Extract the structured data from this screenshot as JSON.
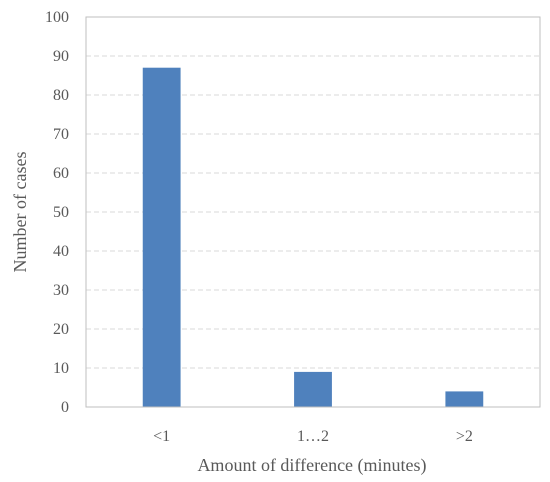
{
  "chart_data": {
    "type": "bar",
    "title": "",
    "categories": [
      "<1",
      "1…2",
      ">2"
    ],
    "values": [
      87,
      9,
      4
    ],
    "xlabel": "Amount of difference (minutes)",
    "ylabel": "Number of cases",
    "ylim": [
      0,
      100
    ],
    "yticks": [
      0,
      10,
      20,
      30,
      40,
      50,
      60,
      70,
      80,
      90,
      100
    ],
    "grid": true,
    "grid_style": "dashed",
    "legend": "none",
    "colors": {
      "bar": "#4f81bd",
      "grid": "#d9d9d9",
      "axis": "#bfbfbf",
      "text": "#595959"
    }
  }
}
